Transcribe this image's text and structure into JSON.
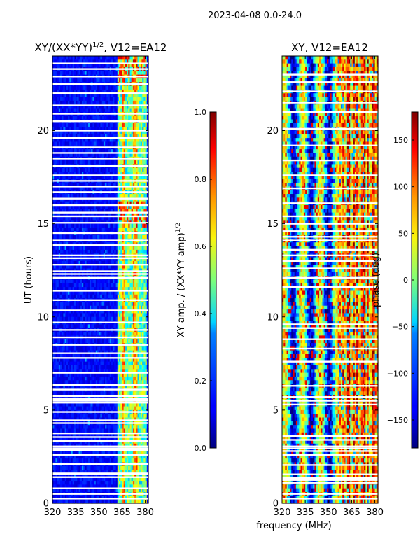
{
  "suptitle": "2023-04-08 0.0-24.0",
  "xlabel": "frequency (MHz)",
  "colors": {
    "background": "#ffffff",
    "blank_row": "#ffffff",
    "axis": "#000000"
  },
  "chart_data": [
    {
      "type": "heatmap",
      "title": "XY/(XX*YY)^{1/2}, V12=EA12",
      "title_main": "XY/(XX*YY)",
      "title_exp": "1/2",
      "title_tail": ", V12=EA12",
      "xlabel": "",
      "ylabel": "UT (hours)",
      "xlim": [
        320,
        382
      ],
      "ylim": [
        0,
        24
      ],
      "xticks": [
        320,
        335,
        350,
        365,
        380
      ],
      "yticks": [
        0,
        5,
        10,
        15,
        20
      ],
      "colormap": "jet",
      "colorbar": {
        "label": "XY amp. / (XX*YY amp)^{1/2}",
        "label_main": "XY amp. / (XX*YY amp)",
        "label_exp": "1/2",
        "range": [
          0.0,
          1.0
        ],
        "ticks": [
          "0.0",
          "0.2",
          "0.4",
          "0.6",
          "0.8",
          "1.0"
        ]
      },
      "blank_rows_hours": [
        0.25,
        0.5,
        0.8,
        1.4,
        1.55,
        1.6,
        2.1,
        2.6,
        2.85,
        2.95,
        3.05,
        3.35,
        3.55,
        3.75,
        4.3,
        4.45,
        4.9,
        5.4,
        5.5,
        5.6,
        5.75,
        6.1,
        6.35,
        7.0,
        7.8,
        8.05,
        8.5,
        8.9,
        9.3,
        9.7,
        10.35,
        10.9,
        11.4,
        12.1,
        12.3,
        12.45,
        12.8,
        13.15,
        13.3,
        13.85,
        14.1,
        14.5,
        15.05,
        15.4,
        15.6,
        16.0,
        16.35,
        16.7,
        17.0,
        17.3,
        17.6,
        18.1,
        18.5,
        18.8,
        19.1,
        19.6,
        20.0,
        20.5,
        20.9,
        21.35,
        22.0,
        22.5,
        22.9,
        23.3,
        23.6
      ]
    },
    {
      "type": "heatmap",
      "title": "XY, V12=EA12",
      "xlabel": "",
      "ylabel": "",
      "xlim": [
        320,
        382
      ],
      "ylim": [
        0,
        24
      ],
      "xticks": [
        320,
        335,
        350,
        365,
        380
      ],
      "yticks": [
        0,
        5,
        10,
        15,
        20
      ],
      "colormap": "jet",
      "colorbar": {
        "label": "phase (deg)",
        "range": [
          -180,
          180
        ],
        "ticks": [
          "−150",
          "−100",
          "−50",
          "0",
          "50",
          "100",
          "150"
        ],
        "tick_values": [
          -150,
          -100,
          -50,
          0,
          50,
          100,
          150
        ]
      },
      "blank_rows_hours": [
        0.25,
        0.5,
        1.1,
        1.25,
        1.35,
        1.55,
        2.05,
        2.6,
        2.8,
        2.95,
        3.05,
        3.4,
        3.6,
        5.3,
        5.5,
        5.7,
        6.3,
        7.6,
        8.3,
        8.8,
        9.4,
        9.6,
        11.6,
        12.1,
        12.6,
        13.0,
        13.3,
        13.6,
        14.1,
        14.3,
        14.6,
        15.0,
        15.4,
        16.1,
        16.9,
        17.6,
        18.4,
        19.2,
        20.1,
        21.0,
        21.5,
        22.1,
        22.6,
        23.0
      ]
    }
  ]
}
